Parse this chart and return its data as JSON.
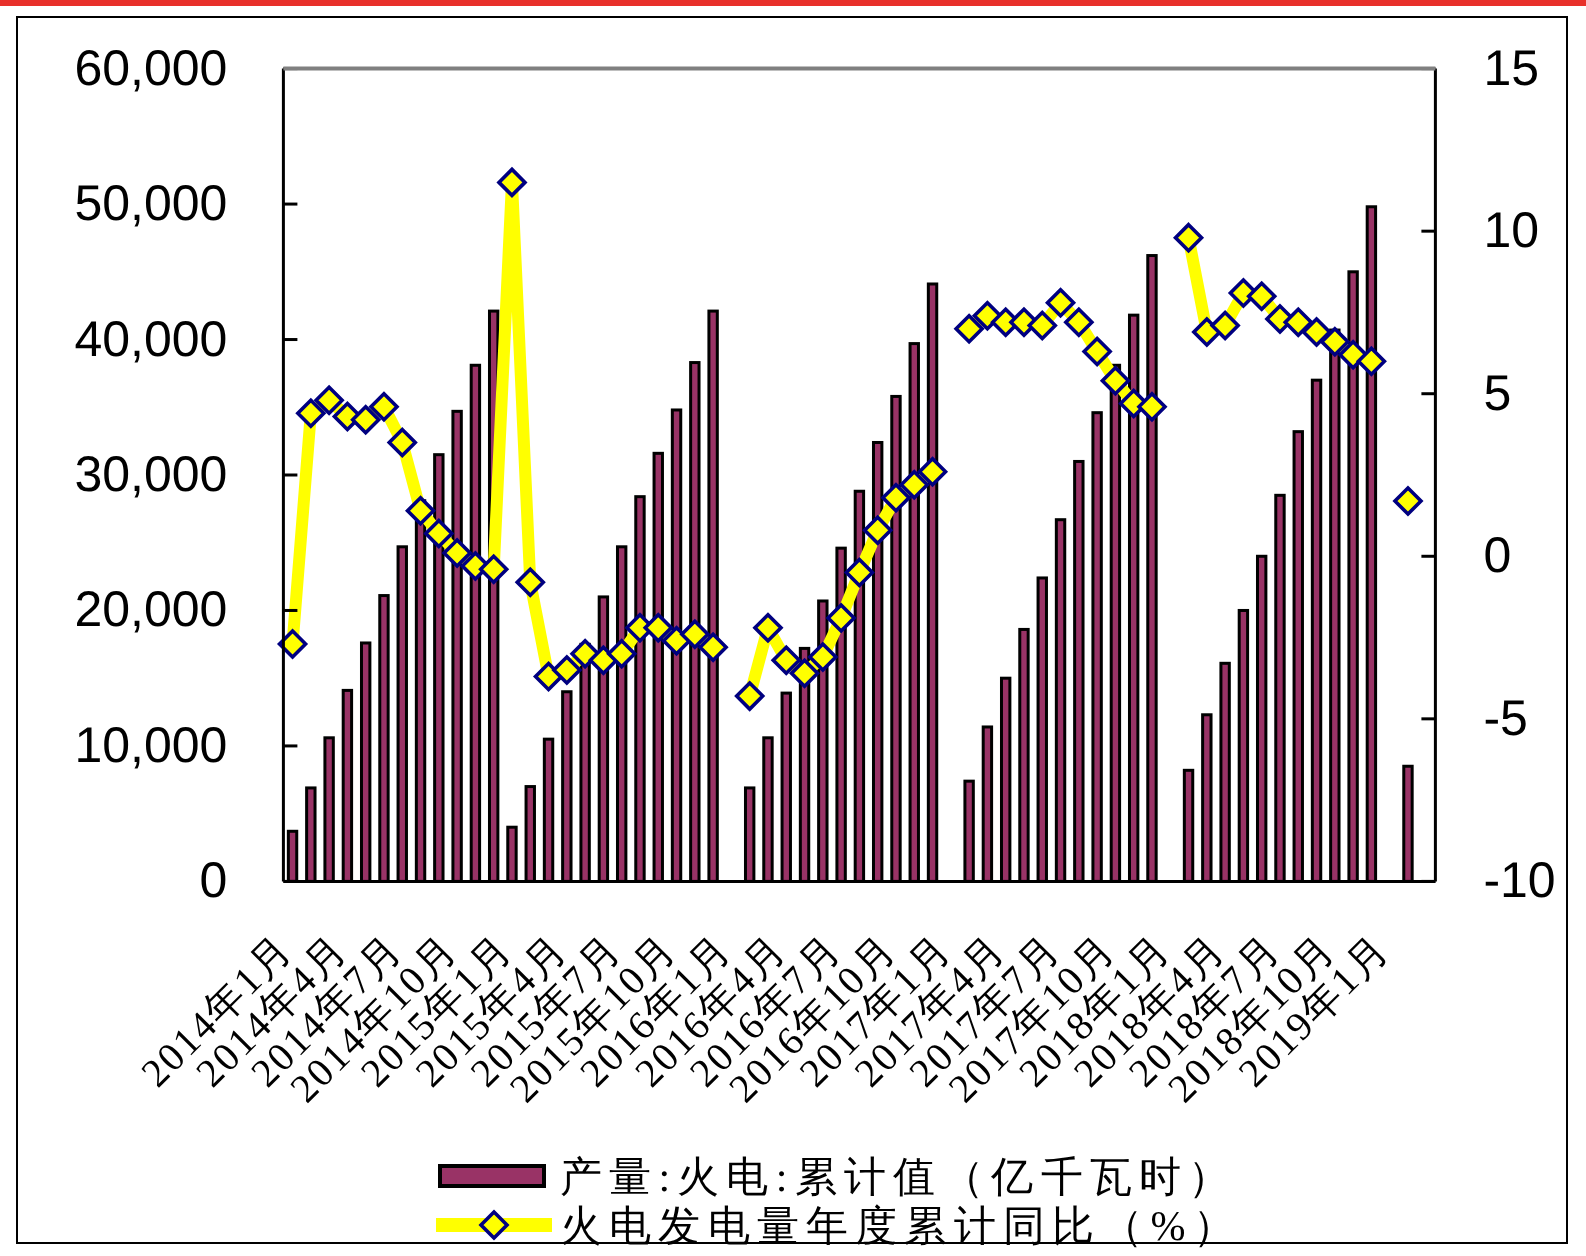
{
  "chart_data": {
    "type": "bar",
    "categories": [
      "2014年1月",
      null,
      null,
      "2014年4月",
      null,
      null,
      "2014年7月",
      null,
      null,
      "2014年10月",
      null,
      null,
      "2015年1月",
      null,
      null,
      "2015年4月",
      null,
      null,
      "2015年7月",
      null,
      null,
      "2015年10月",
      null,
      null,
      "2016年1月",
      null,
      null,
      "2016年4月",
      null,
      null,
      "2016年7月",
      null,
      null,
      "2016年10月",
      null,
      null,
      "2017年1月",
      null,
      null,
      "2017年4月",
      null,
      null,
      "2017年7月",
      null,
      null,
      "2017年10月",
      null,
      null,
      "2018年1月",
      null,
      null,
      "2018年4月",
      null,
      null,
      "2018年7月",
      null,
      null,
      "2018年10月",
      null,
      null,
      "2019年1月",
      null,
      null
    ],
    "series": [
      {
        "name": "产量:火电:累计值（亿千瓦时）",
        "color": "#993366",
        "values": [
          3700,
          6900,
          10600,
          14100,
          17600,
          21100,
          24700,
          28100,
          31500,
          34700,
          38100,
          42100,
          4000,
          7000,
          10500,
          14000,
          17500,
          21000,
          24700,
          28400,
          31600,
          34800,
          38300,
          42100,
          null,
          6900,
          10600,
          13900,
          17200,
          20700,
          24600,
          28800,
          32400,
          35800,
          39700,
          44100,
          null,
          7400,
          11400,
          15000,
          18600,
          22400,
          26700,
          31000,
          34600,
          38100,
          41800,
          46200,
          null,
          8200,
          12300,
          16100,
          20000,
          24000,
          28500,
          33200,
          37000,
          40700,
          45000,
          49800,
          null,
          8500,
          null
        ]
      },
      {
        "name": "火电发电量年度累计同比（%）",
        "type": "line",
        "axis": "y2",
        "color": "#ffff00",
        "values": [
          -2.7,
          4.4,
          4.8,
          4.3,
          4.2,
          4.6,
          3.5,
          1.4,
          0.7,
          0.1,
          -0.3,
          -0.4,
          11.5,
          -0.8,
          -3.7,
          -3.5,
          -3.0,
          -3.2,
          -3.0,
          -2.2,
          -2.2,
          -2.6,
          -2.4,
          -2.8,
          null,
          -4.3,
          -2.2,
          -3.2,
          -3.6,
          -3.1,
          -1.9,
          -0.5,
          0.8,
          1.8,
          2.2,
          2.6,
          null,
          7.0,
          7.4,
          7.2,
          7.2,
          7.1,
          7.8,
          7.2,
          6.3,
          5.4,
          4.7,
          4.6,
          null,
          9.8,
          6.9,
          7.1,
          8.1,
          8.0,
          7.3,
          7.2,
          6.9,
          6.6,
          6.2,
          6.0,
          null,
          1.7,
          null
        ]
      }
    ],
    "ylim": [
      0,
      60000
    ],
    "yticks": [
      0,
      {
        "value": 10000,
        "label": "10,000"
      },
      {
        "value": 20000,
        "label": "20,000"
      },
      {
        "value": 30000,
        "label": "30,000"
      },
      {
        "value": 40000,
        "label": "40,000"
      },
      {
        "value": 50000,
        "label": "50,000"
      },
      {
        "value": 60000,
        "label": "60,000"
      }
    ],
    "y2lim": [
      -10,
      15
    ],
    "y2ticks": [
      -10,
      -5,
      0,
      5,
      10,
      15
    ],
    "legend": "bottom",
    "marker": "diamond"
  }
}
